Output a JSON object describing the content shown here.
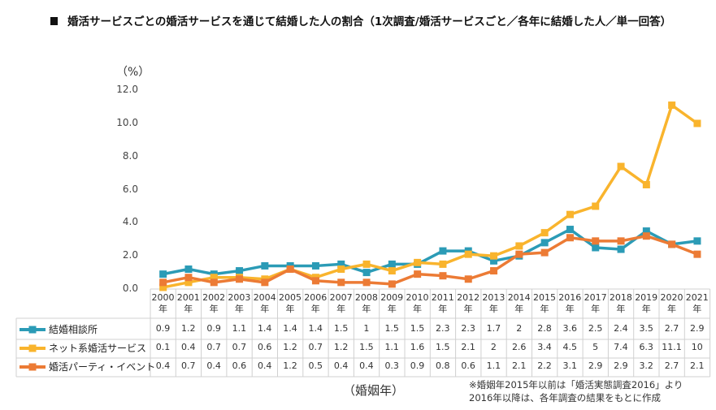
{
  "title": "婚活サービスごとの婚活サービスを通じて結婚した人の割合（1次調査/婚活サービスごと／各年に結婚した人／単一回答）",
  "chart_data": {
    "type": "line",
    "ylabel": "（%）",
    "xlabel": "（婚姻年）",
    "ylim": [
      0,
      12
    ],
    "yticks": [
      "0.0",
      "2.0",
      "4.0",
      "6.0",
      "8.0",
      "10.0",
      "12.0"
    ],
    "grid": false,
    "legend": "data-table-left",
    "categories": [
      "2000",
      "2001",
      "2002",
      "2003",
      "2004",
      "2005",
      "2006",
      "2007",
      "2008",
      "2009",
      "2010",
      "2011",
      "2012",
      "2013",
      "2014",
      "2015",
      "2016",
      "2017",
      "2018",
      "2019",
      "2020",
      "2021"
    ],
    "year_suffix": "年",
    "series": [
      {
        "name": "結婚相談所",
        "color": "#2b9bb6",
        "values": [
          0.9,
          1.2,
          0.9,
          1.1,
          1.4,
          1.4,
          1.4,
          1.5,
          1.0,
          1.5,
          1.5,
          2.3,
          2.3,
          1.7,
          2.0,
          2.8,
          3.6,
          2.5,
          2.4,
          3.5,
          2.7,
          2.9
        ]
      },
      {
        "name": "ネット系婚活サービス",
        "color": "#f9b42d",
        "values": [
          0.1,
          0.4,
          0.7,
          0.7,
          0.6,
          1.2,
          0.7,
          1.2,
          1.5,
          1.1,
          1.6,
          1.5,
          2.1,
          2.0,
          2.6,
          3.4,
          4.5,
          5.0,
          7.4,
          6.3,
          11.1,
          10.0
        ]
      },
      {
        "name": "婚活パーティ・イベント",
        "color": "#ec7b35",
        "values": [
          0.4,
          0.7,
          0.4,
          0.6,
          0.4,
          1.2,
          0.5,
          0.4,
          0.4,
          0.3,
          0.9,
          0.8,
          0.6,
          1.1,
          2.1,
          2.2,
          3.1,
          2.9,
          2.9,
          3.2,
          2.7,
          2.1
        ]
      }
    ],
    "note": [
      "※婚姻年2015年以前は「婚活実態調査2016」より",
      "2016年以降は、各年調査の結果をもとに作成"
    ]
  }
}
